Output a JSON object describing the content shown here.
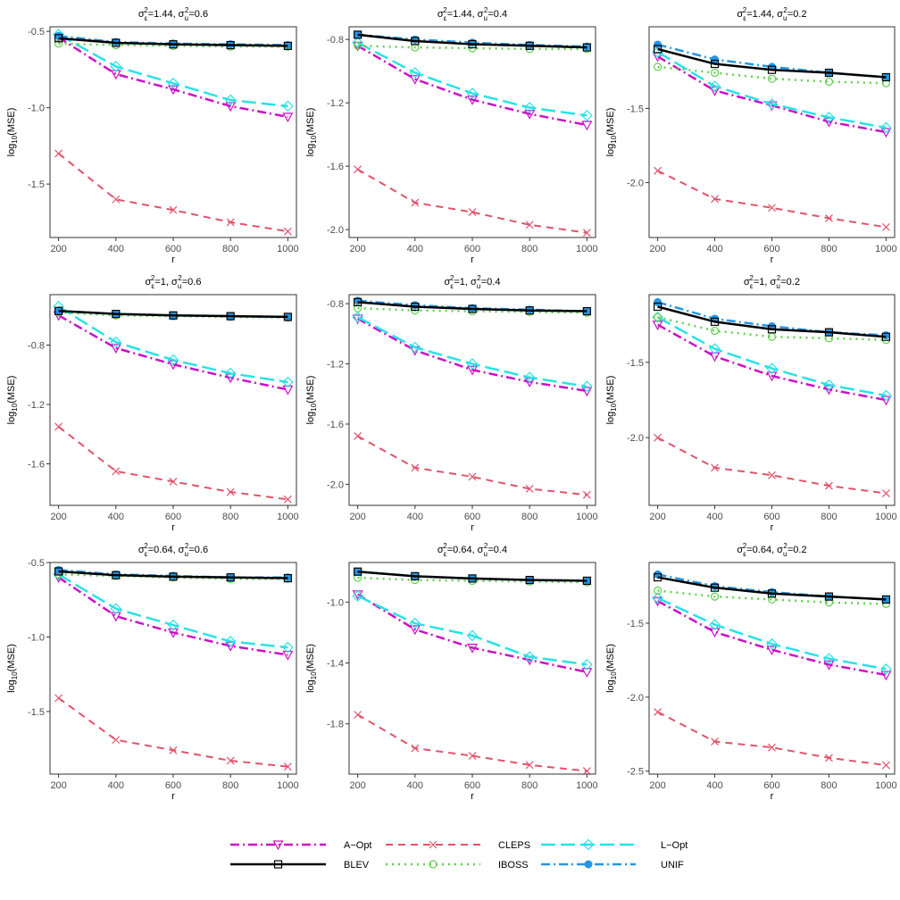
{
  "chart_data": {
    "type": "line",
    "layout": "3x3 grid of panels",
    "x": [
      200,
      400,
      600,
      800,
      1000
    ],
    "xlabel": "r",
    "ylabel": "log10(MSE)",
    "xticks": [
      "200",
      "400",
      "600",
      "800",
      "1000"
    ],
    "grid": false,
    "legend_position": "bottom",
    "series_styles": [
      {
        "name": "A−Opt",
        "color": "#CC10C8",
        "dash": "10,4,2,4",
        "width": 2.5,
        "marker": "triangle-down"
      },
      {
        "name": "BLEV",
        "color": "#000000",
        "dash": "",
        "width": 2.5,
        "marker": "square"
      },
      {
        "name": "CLEPS",
        "color": "#DF536B",
        "dash": "8,6",
        "width": 2.0,
        "marker": "x"
      },
      {
        "name": "IBOSS",
        "color": "#61D04F",
        "dash": "2,5",
        "width": 2.5,
        "marker": "circle-open"
      },
      {
        "name": "L−Opt",
        "color": "#28E2E5",
        "dash": "16,6",
        "width": 2.5,
        "marker": "diamond"
      },
      {
        "name": "UNIF",
        "color": "#2297E6",
        "dash": "10,4,2,4",
        "width": 2.5,
        "marker": "circle-filled"
      }
    ],
    "panels": [
      {
        "title_pre": "σ",
        "sub1": "ε",
        "mid": "=1.44, σ",
        "sub2": "u",
        "post": "=0.6",
        "ylim": [
          -1.85,
          -0.47
        ],
        "yticks": [
          -0.5,
          -1.0,
          -1.5
        ],
        "ytick_labels": [
          "-0.5",
          "-1.0",
          "-1.5"
        ],
        "series": [
          {
            "name": "A−Opt",
            "values": [
              -0.54,
              -0.78,
              -0.88,
              -0.99,
              -1.06
            ]
          },
          {
            "name": "BLEV",
            "values": [
              -0.545,
              -0.575,
              -0.585,
              -0.59,
              -0.595
            ]
          },
          {
            "name": "CLEPS",
            "values": [
              -1.3,
              -1.6,
              -1.67,
              -1.75,
              -1.81
            ]
          },
          {
            "name": "IBOSS",
            "values": [
              -0.58,
              -0.59,
              -0.595,
              -0.6,
              -0.6
            ]
          },
          {
            "name": "L−Opt",
            "values": [
              -0.52,
              -0.73,
              -0.84,
              -0.95,
              -0.99
            ]
          },
          {
            "name": "UNIF",
            "values": [
              -0.53,
              -0.57,
              -0.58,
              -0.585,
              -0.59
            ]
          }
        ]
      },
      {
        "title_pre": "σ",
        "sub1": "ε",
        "mid": "=1.44, σ",
        "sub2": "u",
        "post": "=0.4",
        "ylim": [
          -2.05,
          -0.72
        ],
        "yticks": [
          -0.8,
          -1.2,
          -1.6,
          -2.0
        ],
        "ytick_labels": [
          "-0.8",
          "-1.2",
          "-1.6",
          "-2.0"
        ],
        "series": [
          {
            "name": "A−Opt",
            "values": [
              -0.84,
              -1.05,
              -1.18,
              -1.27,
              -1.34
            ]
          },
          {
            "name": "BLEV",
            "values": [
              -0.77,
              -0.81,
              -0.83,
              -0.84,
              -0.85
            ]
          },
          {
            "name": "CLEPS",
            "values": [
              -1.62,
              -1.83,
              -1.89,
              -1.97,
              -2.02
            ]
          },
          {
            "name": "IBOSS",
            "values": [
              -0.84,
              -0.85,
              -0.855,
              -0.86,
              -0.86
            ]
          },
          {
            "name": "L−Opt",
            "values": [
              -0.82,
              -1.01,
              -1.14,
              -1.23,
              -1.28
            ]
          },
          {
            "name": "UNIF",
            "values": [
              -0.77,
              -0.8,
              -0.82,
              -0.835,
              -0.845
            ]
          }
        ]
      },
      {
        "title_pre": "σ",
        "sub1": "ε",
        "mid": "=1.44, σ",
        "sub2": "u",
        "post": "=0.2",
        "ylim": [
          -2.37,
          -0.95
        ],
        "yticks": [
          -1.5,
          -2.0
        ],
        "ytick_labels": [
          "-1.5",
          "-2.0"
        ],
        "series": [
          {
            "name": "A−Opt",
            "values": [
              -1.15,
              -1.38,
              -1.48,
              -1.59,
              -1.66
            ]
          },
          {
            "name": "BLEV",
            "values": [
              -1.1,
              -1.2,
              -1.24,
              -1.26,
              -1.29
            ]
          },
          {
            "name": "CLEPS",
            "values": [
              -1.92,
              -2.11,
              -2.17,
              -2.24,
              -2.3
            ]
          },
          {
            "name": "IBOSS",
            "values": [
              -1.22,
              -1.26,
              -1.3,
              -1.32,
              -1.33
            ]
          },
          {
            "name": "L−Opt",
            "values": [
              -1.12,
              -1.35,
              -1.47,
              -1.56,
              -1.63
            ]
          },
          {
            "name": "UNIF",
            "values": [
              -1.07,
              -1.17,
              -1.22,
              -1.26,
              -1.29
            ]
          }
        ]
      },
      {
        "title_pre": "σ",
        "sub1": "ε",
        "mid": "=1, σ",
        "sub2": "u",
        "post": "=0.6",
        "ylim": [
          -1.88,
          -0.46
        ],
        "yticks": [
          -0.8,
          -1.2,
          -1.6
        ],
        "ytick_labels": [
          "-0.8",
          "-1.2",
          "-1.6"
        ],
        "series": [
          {
            "name": "A−Opt",
            "values": [
              -0.6,
              -0.82,
              -0.93,
              -1.02,
              -1.1
            ]
          },
          {
            "name": "BLEV",
            "values": [
              -0.57,
              -0.59,
              -0.6,
              -0.605,
              -0.61
            ]
          },
          {
            "name": "CLEPS",
            "values": [
              -1.35,
              -1.65,
              -1.72,
              -1.79,
              -1.84
            ]
          },
          {
            "name": "IBOSS",
            "values": [
              -0.58,
              -0.6,
              -0.605,
              -0.61,
              -0.615
            ]
          },
          {
            "name": "L−Opt",
            "values": [
              -0.54,
              -0.78,
              -0.9,
              -0.99,
              -1.05
            ]
          },
          {
            "name": "UNIF",
            "values": [
              -0.57,
              -0.59,
              -0.6,
              -0.605,
              -0.61
            ]
          }
        ]
      },
      {
        "title_pre": "σ",
        "sub1": "ε",
        "mid": "=1, σ",
        "sub2": "u",
        "post": "=0.4",
        "ylim": [
          -2.14,
          -0.74
        ],
        "yticks": [
          -0.8,
          -1.2,
          -1.6,
          -2.0
        ],
        "ytick_labels": [
          "-0.8",
          "-1.2",
          "-1.6",
          "-2.0"
        ],
        "series": [
          {
            "name": "A−Opt",
            "values": [
              -0.9,
              -1.11,
              -1.24,
              -1.32,
              -1.38
            ]
          },
          {
            "name": "BLEV",
            "values": [
              -0.79,
              -0.82,
              -0.835,
              -0.845,
              -0.85
            ]
          },
          {
            "name": "CLEPS",
            "values": [
              -1.68,
              -1.89,
              -1.95,
              -2.03,
              -2.07
            ]
          },
          {
            "name": "IBOSS",
            "values": [
              -0.83,
              -0.845,
              -0.85,
              -0.855,
              -0.86
            ]
          },
          {
            "name": "L−Opt",
            "values": [
              -0.89,
              -1.09,
              -1.2,
              -1.29,
              -1.35
            ]
          },
          {
            "name": "UNIF",
            "values": [
              -0.78,
              -0.81,
              -0.83,
              -0.84,
              -0.85
            ]
          }
        ]
      },
      {
        "title_pre": "σ",
        "sub1": "ε",
        "mid": "=1, σ",
        "sub2": "u",
        "post": "=0.2",
        "ylim": [
          -2.45,
          -1.05
        ],
        "yticks": [
          -1.5,
          -2.0
        ],
        "ytick_labels": [
          "-1.5",
          "-2.0"
        ],
        "series": [
          {
            "name": "A−Opt",
            "values": [
              -1.25,
              -1.46,
              -1.59,
              -1.68,
              -1.75
            ]
          },
          {
            "name": "BLEV",
            "values": [
              -1.13,
              -1.23,
              -1.28,
              -1.3,
              -1.33
            ]
          },
          {
            "name": "CLEPS",
            "values": [
              -2.0,
              -2.2,
              -2.25,
              -2.32,
              -2.37
            ]
          },
          {
            "name": "IBOSS",
            "values": [
              -1.2,
              -1.29,
              -1.33,
              -1.34,
              -1.35
            ]
          },
          {
            "name": "L−Opt",
            "values": [
              -1.2,
              -1.41,
              -1.54,
              -1.65,
              -1.72
            ]
          },
          {
            "name": "UNIF",
            "values": [
              -1.1,
              -1.21,
              -1.26,
              -1.3,
              -1.32
            ]
          }
        ]
      },
      {
        "title_pre": "σ",
        "sub1": "ε",
        "mid": "=0.64, σ",
        "sub2": "u",
        "post": "=0.6",
        "ylim": [
          -1.92,
          -0.5
        ],
        "yticks": [
          -0.5,
          -1.0,
          -1.5
        ],
        "ytick_labels": [
          "-0.5",
          "-1.0",
          "-1.5"
        ],
        "series": [
          {
            "name": "A−Opt",
            "values": [
              -0.6,
              -0.86,
              -0.97,
              -1.06,
              -1.12
            ]
          },
          {
            "name": "BLEV",
            "values": [
              -0.56,
              -0.585,
              -0.595,
              -0.6,
              -0.605
            ]
          },
          {
            "name": "CLEPS",
            "values": [
              -1.41,
              -1.69,
              -1.76,
              -1.83,
              -1.87
            ]
          },
          {
            "name": "IBOSS",
            "values": [
              -0.58,
              -0.59,
              -0.6,
              -0.61,
              -0.61
            ]
          },
          {
            "name": "L−Opt",
            "values": [
              -0.58,
              -0.81,
              -0.92,
              -1.03,
              -1.07
            ]
          },
          {
            "name": "UNIF",
            "values": [
              -0.55,
              -0.58,
              -0.59,
              -0.6,
              -0.6
            ]
          }
        ]
      },
      {
        "title_pre": "σ",
        "sub1": "ε",
        "mid": "=0.64, σ",
        "sub2": "u",
        "post": "=0.4",
        "ylim": [
          -2.13,
          -0.74
        ],
        "yticks": [
          -1.0,
          -1.4,
          -1.8
        ],
        "ytick_labels": [
          "-1.0",
          "-1.4",
          "-1.8"
        ],
        "series": [
          {
            "name": "A−Opt",
            "values": [
              -0.95,
              -1.18,
              -1.3,
              -1.38,
              -1.46
            ]
          },
          {
            "name": "BLEV",
            "values": [
              -0.8,
              -0.83,
              -0.845,
              -0.855,
              -0.86
            ]
          },
          {
            "name": "CLEPS",
            "values": [
              -1.74,
              -1.96,
              -2.01,
              -2.07,
              -2.11
            ]
          },
          {
            "name": "IBOSS",
            "values": [
              -0.84,
              -0.855,
              -0.86,
              -0.865,
              -0.87
            ]
          },
          {
            "name": "L−Opt",
            "values": [
              -0.96,
              -1.14,
              -1.22,
              -1.36,
              -1.41
            ]
          },
          {
            "name": "UNIF",
            "values": [
              -0.8,
              -0.83,
              -0.845,
              -0.855,
              -0.86
            ]
          }
        ]
      },
      {
        "title_pre": "σ",
        "sub1": "ε",
        "mid": "=0.64, σ",
        "sub2": "u",
        "post": "=0.2",
        "ylim": [
          -2.52,
          -1.09
        ],
        "yticks": [
          -1.5,
          -2.0,
          -2.5
        ],
        "ytick_labels": [
          "-1.5",
          "-2.0",
          "-2.5"
        ],
        "series": [
          {
            "name": "A−Opt",
            "values": [
              -1.35,
              -1.56,
              -1.68,
              -1.78,
              -1.85
            ]
          },
          {
            "name": "BLEV",
            "values": [
              -1.19,
              -1.26,
              -1.3,
              -1.32,
              -1.34
            ]
          },
          {
            "name": "CLEPS",
            "values": [
              -2.1,
              -2.3,
              -2.34,
              -2.41,
              -2.46
            ]
          },
          {
            "name": "IBOSS",
            "values": [
              -1.28,
              -1.32,
              -1.34,
              -1.36,
              -1.37
            ]
          },
          {
            "name": "L−Opt",
            "values": [
              -1.33,
              -1.51,
              -1.64,
              -1.74,
              -1.81
            ]
          },
          {
            "name": "UNIF",
            "values": [
              -1.17,
              -1.25,
              -1.29,
              -1.32,
              -1.34
            ]
          }
        ]
      }
    ]
  }
}
